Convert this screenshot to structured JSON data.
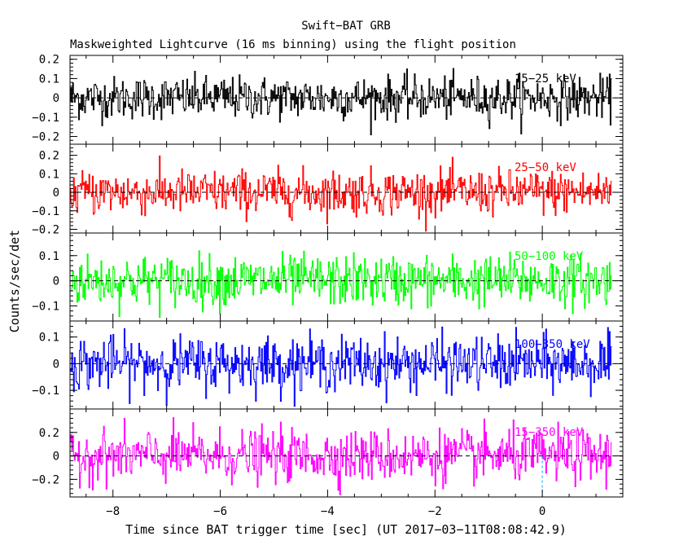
{
  "chart_data": {
    "type": "line",
    "title": "Swift−BAT GRB",
    "subtitle": "Maskweighted Lightcurve (16 ms binning) using the flight position",
    "xlabel": "Time since BAT trigger time [sec] (UT 2017−03−11T08:08:42.9)",
    "ylabel": "Counts/sec/det",
    "xlim": [
      -8.8,
      1.5
    ],
    "xticks": [
      -8,
      -6,
      -4,
      -2,
      0
    ],
    "xtick_labels": [
      "−8",
      "−6",
      "−4",
      "−2",
      "0"
    ],
    "data_x_range": [
      -8.8,
      1.3
    ],
    "bin_width_s": 0.016,
    "trigger_marker_x": 0,
    "grid": false,
    "panels": [
      {
        "name": "15−25 keV",
        "color": "#000000",
        "ylim": [
          -0.24,
          0.22
        ],
        "yticks": [
          0.2,
          0.1,
          0,
          -0.1,
          -0.2
        ],
        "ytick_labels": [
          "0.2",
          "0.1",
          "0",
          "−0.1",
          "−0.2"
        ],
        "noise_sigma": 0.055,
        "clip": [
          -0.23,
          0.21
        ]
      },
      {
        "name": "25−50 keV",
        "color": "#ff0000",
        "ylim": [
          -0.22,
          0.26
        ],
        "yticks": [
          0.2,
          0.1,
          0,
          -0.1,
          -0.2
        ],
        "ytick_labels": [
          "0.2",
          "0.1",
          "0",
          "−0.1",
          "−0.2"
        ],
        "noise_sigma": 0.06,
        "clip": [
          -0.21,
          0.25
        ]
      },
      {
        "name": "50−100 keV",
        "color": "#00ff00",
        "ylim": [
          -0.16,
          0.19
        ],
        "yticks": [
          0.1,
          0,
          -0.1
        ],
        "ytick_labels": [
          "0.1",
          "0",
          "−0.1"
        ],
        "noise_sigma": 0.05,
        "clip": [
          -0.15,
          0.18
        ]
      },
      {
        "name": "100−350 keV",
        "color": "#0000ff",
        "ylim": [
          -0.17,
          0.16
        ],
        "yticks": [
          0.1,
          0,
          -0.1
        ],
        "ytick_labels": [
          "0.1",
          "0",
          "−0.1"
        ],
        "noise_sigma": 0.05,
        "clip": [
          -0.16,
          0.15
        ]
      },
      {
        "name": "15−350 keV",
        "color": "#ff00ff",
        "ylim": [
          -0.35,
          0.4
        ],
        "yticks": [
          0.2,
          0,
          -0.2
        ],
        "ytick_labels": [
          "0.2",
          "0",
          "−0.2"
        ],
        "noise_sigma": 0.11,
        "clip": [
          -0.34,
          0.39
        ]
      }
    ]
  }
}
